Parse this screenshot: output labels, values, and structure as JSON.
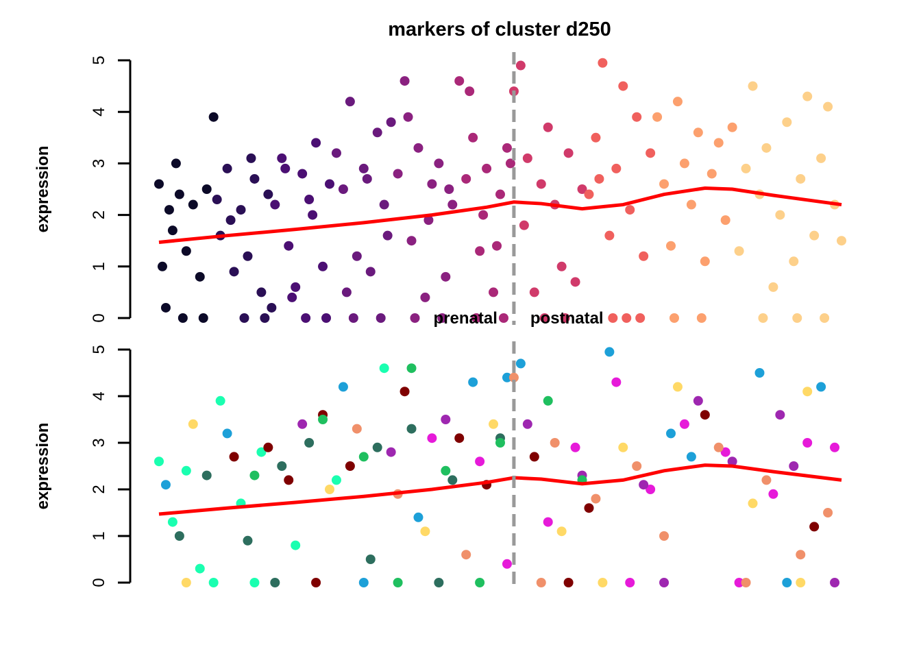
{
  "chart_data": [
    {
      "type": "scatter",
      "title": "markers of cluster d250",
      "y_label": "expression",
      "xlim": [
        0,
        100
      ],
      "ylim": [
        0,
        5
      ],
      "yticks": [
        0,
        1,
        2,
        3,
        4,
        5
      ],
      "annotations": [
        "prenatal",
        "postnatal"
      ],
      "divider": {
        "x": 52,
        "color": "#999999"
      },
      "series": [
        {
          "color": "#0c0a28",
          "x": [
            0,
            0.5,
            1,
            1.5,
            2,
            2.5,
            3,
            4,
            5,
            6,
            7,
            8,
            3.5,
            6.5
          ],
          "values": [
            2.6,
            1.0,
            0.2,
            2.1,
            1.7,
            3.0,
            2.4,
            1.3,
            2.2,
            0.8,
            2.5,
            3.9,
            0,
            0
          ]
        },
        {
          "color": "#2a0f55",
          "x": [
            8.5,
            9,
            10,
            11,
            12,
            13,
            14,
            15,
            16,
            10.5,
            13.5,
            16.5,
            12.5,
            15.5
          ],
          "values": [
            2.3,
            1.6,
            2.9,
            0.9,
            2.1,
            1.2,
            2.7,
            0.5,
            2.4,
            1.9,
            3.1,
            0.2,
            0,
            0
          ]
        },
        {
          "color": "#4b0f73",
          "x": [
            17,
            18,
            19,
            20,
            21,
            22,
            23,
            24,
            25,
            19.5,
            22.5,
            18.5,
            21.5,
            24.5
          ],
          "values": [
            2.2,
            3.1,
            1.4,
            0.6,
            2.8,
            2.3,
            3.4,
            1.0,
            2.6,
            0.4,
            2.0,
            2.9,
            0,
            0
          ]
        },
        {
          "color": "#6a1a7d",
          "x": [
            26,
            27,
            28,
            29,
            30,
            31,
            32,
            33,
            34,
            27.5,
            30.5,
            33.5,
            28.5,
            32.5
          ],
          "values": [
            3.2,
            2.5,
            4.2,
            1.2,
            2.9,
            0.9,
            3.6,
            2.2,
            3.8,
            0.5,
            2.7,
            1.6,
            0,
            0
          ]
        },
        {
          "color": "#8a2180",
          "x": [
            35,
            36,
            37,
            38,
            39,
            40,
            41,
            42,
            43,
            36.5,
            39.5,
            42.5,
            37.5,
            41.5
          ],
          "values": [
            2.8,
            4.6,
            1.5,
            3.3,
            0.4,
            2.6,
            3.0,
            0.8,
            2.2,
            3.9,
            1.9,
            2.5,
            0,
            0
          ]
        },
        {
          "color": "#aa2878",
          "x": [
            44,
            45,
            46,
            47,
            48,
            49,
            50,
            51,
            45.5,
            47.5,
            49.5,
            51.5,
            46.5,
            50.5
          ],
          "values": [
            4.6,
            2.7,
            3.5,
            1.3,
            2.9,
            0.5,
            2.4,
            3.3,
            4.4,
            2.0,
            1.4,
            3.0,
            0,
            0
          ]
        },
        {
          "color": "#d03a6a",
          "x": [
            52,
            53,
            54,
            55,
            56,
            57,
            58,
            59,
            60,
            61,
            62,
            53.5,
            56.5,
            59.5
          ],
          "values": [
            4.4,
            4.9,
            3.1,
            0.5,
            2.6,
            3.7,
            2.2,
            1.0,
            3.2,
            0.7,
            2.5,
            1.8,
            0,
            0
          ]
        },
        {
          "color": "#f0605d",
          "x": [
            63,
            64,
            65,
            66,
            67,
            68,
            69,
            70,
            71,
            72,
            64.5,
            68.5,
            66.5,
            70.5
          ],
          "values": [
            2.4,
            3.5,
            4.95,
            1.6,
            2.9,
            4.5,
            2.1,
            3.9,
            1.2,
            3.2,
            2.7,
            0,
            0,
            0
          ]
        },
        {
          "color": "#fca06e",
          "x": [
            73,
            74,
            75,
            76,
            77,
            78,
            79,
            80,
            81,
            82,
            83,
            84,
            75.5,
            79.5
          ],
          "values": [
            3.9,
            2.6,
            1.4,
            4.2,
            3.0,
            2.2,
            3.6,
            1.1,
            2.8,
            3.4,
            1.9,
            3.7,
            0,
            0
          ]
        },
        {
          "color": "#fdd08a",
          "x": [
            85,
            86,
            87,
            88,
            89,
            90,
            91,
            92,
            93,
            94,
            95,
            96,
            97,
            98,
            99,
            100,
            88.5,
            93.5,
            97.5
          ],
          "values": [
            1.3,
            2.9,
            4.5,
            2.4,
            3.3,
            0.6,
            2.0,
            3.8,
            1.1,
            2.7,
            4.3,
            1.6,
            3.1,
            4.1,
            2.2,
            1.5,
            0,
            0,
            0
          ]
        }
      ],
      "trend": {
        "color": "#ff0000",
        "x": [
          0,
          10,
          20,
          30,
          40,
          48,
          52,
          56,
          62,
          68,
          74,
          80,
          84,
          90,
          100
        ],
        "values": [
          1.47,
          1.6,
          1.72,
          1.85,
          2.0,
          2.15,
          2.25,
          2.22,
          2.12,
          2.2,
          2.4,
          2.52,
          2.5,
          2.38,
          2.2
        ]
      }
    },
    {
      "type": "scatter",
      "y_label": "expression",
      "xlim": [
        0,
        100
      ],
      "ylim": [
        0,
        5
      ],
      "yticks": [
        0,
        1,
        2,
        3,
        4,
        5
      ],
      "divider": {
        "x": 52,
        "color": "#999999"
      },
      "series": [
        {
          "color": "#1affb0",
          "x": [
            0,
            2,
            4,
            6,
            9,
            12,
            15,
            20,
            26,
            33,
            8,
            14
          ],
          "values": [
            2.6,
            1.3,
            2.4,
            0.3,
            3.9,
            1.7,
            2.8,
            0.8,
            2.2,
            4.6,
            0,
            0
          ]
        },
        {
          "color": "#7f0000",
          "x": [
            11,
            16,
            19,
            24,
            28,
            36,
            44,
            48,
            55,
            63,
            80,
            96,
            23,
            60
          ],
          "values": [
            2.7,
            2.9,
            2.2,
            3.6,
            2.5,
            4.1,
            3.1,
            2.1,
            2.7,
            1.6,
            3.6,
            1.2,
            0,
            0
          ]
        },
        {
          "color": "#1da0d8",
          "x": [
            1,
            10,
            27,
            38,
            46,
            51,
            53,
            66,
            75,
            78,
            88,
            97,
            30,
            92
          ],
          "values": [
            2.1,
            3.2,
            4.2,
            1.4,
            4.3,
            4.4,
            4.7,
            4.95,
            3.2,
            2.7,
            4.5,
            4.2,
            0,
            0
          ]
        },
        {
          "color": "#e61ad9",
          "x": [
            40,
            47,
            51,
            57,
            61,
            67,
            72,
            77,
            83,
            90,
            95,
            99,
            69,
            85
          ],
          "values": [
            3.1,
            2.6,
            0.4,
            1.3,
            2.9,
            4.3,
            2.0,
            3.4,
            2.8,
            1.9,
            3.0,
            2.9,
            0,
            0
          ]
        },
        {
          "color": "#f0906a",
          "x": [
            29,
            35,
            45,
            52,
            58,
            64,
            70,
            74,
            82,
            89,
            94,
            98,
            56,
            86
          ],
          "values": [
            3.3,
            1.9,
            0.6,
            4.4,
            3.0,
            1.8,
            2.5,
            1.0,
            2.9,
            2.2,
            0.6,
            1.5,
            0,
            0
          ]
        },
        {
          "color": "#2d6e5e",
          "x": [
            3,
            7,
            13,
            18,
            22,
            32,
            37,
            43,
            50,
            31,
            17,
            41
          ],
          "values": [
            1.0,
            2.3,
            0.9,
            2.5,
            3.0,
            2.9,
            3.3,
            2.2,
            3.1,
            0.5,
            0,
            0
          ]
        },
        {
          "color": "#9e27b0",
          "x": [
            21,
            34,
            42,
            54,
            62,
            71,
            79,
            84,
            91,
            93,
            74,
            99
          ],
          "values": [
            3.4,
            2.8,
            3.5,
            3.4,
            2.3,
            2.1,
            3.9,
            2.6,
            3.6,
            2.5,
            0,
            0
          ]
        },
        {
          "color": "#ffd966",
          "x": [
            5,
            25,
            39,
            49,
            59,
            68,
            76,
            87,
            95,
            4,
            65,
            94
          ],
          "values": [
            3.4,
            2.0,
            1.1,
            3.4,
            1.1,
            2.9,
            4.2,
            1.7,
            4.1,
            0,
            0,
            0
          ]
        },
        {
          "color": "#1fbf5f",
          "x": [
            14,
            24,
            30,
            37,
            42,
            50,
            57,
            62,
            35,
            47
          ],
          "values": [
            2.3,
            3.5,
            2.7,
            4.6,
            2.4,
            3.0,
            3.9,
            2.2,
            0,
            0
          ]
        }
      ],
      "trend": {
        "color": "#ff0000",
        "x": [
          0,
          10,
          20,
          30,
          40,
          48,
          52,
          56,
          62,
          68,
          74,
          80,
          84,
          90,
          100
        ],
        "values": [
          1.47,
          1.6,
          1.72,
          1.85,
          2.0,
          2.15,
          2.25,
          2.22,
          2.12,
          2.2,
          2.4,
          2.52,
          2.5,
          2.38,
          2.2
        ]
      }
    }
  ]
}
